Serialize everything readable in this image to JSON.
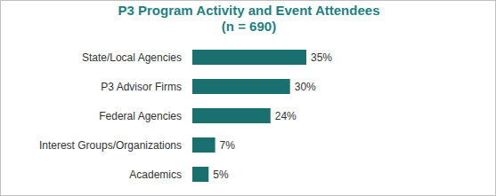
{
  "chart_data": {
    "type": "bar",
    "title": "P3 Program Activity and Event Attendees",
    "subtitle": "(n = 690)",
    "categories": [
      "State/Local Agencies",
      "P3 Advisor Firms",
      "Federal Agencies",
      "Interest Groups/Organizations",
      "Academics"
    ],
    "values": [
      35,
      30,
      24,
      7,
      5
    ],
    "value_labels": [
      "35%",
      "30%",
      "24%",
      "7%",
      "5%"
    ],
    "color": "#1a6f6f",
    "orientation": "horizontal",
    "data_labels": true,
    "tick_labels": "y"
  }
}
